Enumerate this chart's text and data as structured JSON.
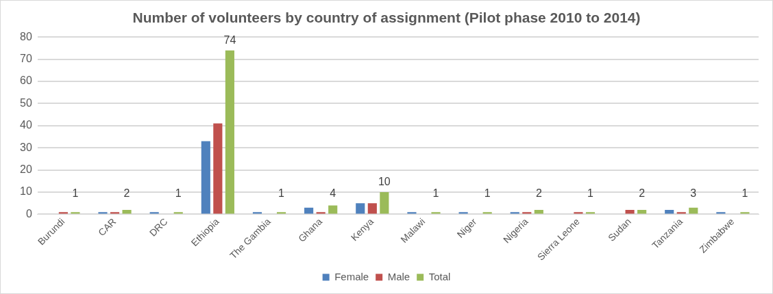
{
  "chart_data": {
    "type": "bar",
    "title": "Number of volunteers by country of assignment (Pilot phase 2010 to 2014)",
    "categories": [
      "Burundi",
      "CAR",
      "DRC",
      "Ethiopia",
      "The Gambia",
      "Ghana",
      "Kenya",
      "Malawi",
      "Niger",
      "Nigeria",
      "Sierra Leone",
      "Sudan",
      "Tanzania",
      "Zimbabwe"
    ],
    "series": [
      {
        "name": "Female",
        "color": "#4f81bd",
        "values": [
          0,
          1,
          1,
          33,
          1,
          3,
          5,
          1,
          1,
          1,
          0,
          0,
          2,
          1
        ]
      },
      {
        "name": "Male",
        "color": "#c0504d",
        "values": [
          1,
          1,
          0,
          41,
          0,
          1,
          5,
          0,
          0,
          1,
          1,
          2,
          1,
          0
        ]
      },
      {
        "name": "Total",
        "color": "#9bbb59",
        "values": [
          1,
          2,
          1,
          74,
          1,
          4,
          10,
          1,
          1,
          2,
          1,
          2,
          3,
          1
        ],
        "value_labels": [
          "1",
          "2",
          "1",
          "74",
          "1",
          "4",
          "10",
          "1",
          "1",
          "2",
          "1",
          "2",
          "3",
          "1"
        ]
      }
    ],
    "ylim": [
      0,
      80
    ],
    "yticks": [
      0,
      10,
      20,
      30,
      40,
      50,
      60,
      70,
      80
    ],
    "grid": "y",
    "legend": "bottom"
  }
}
